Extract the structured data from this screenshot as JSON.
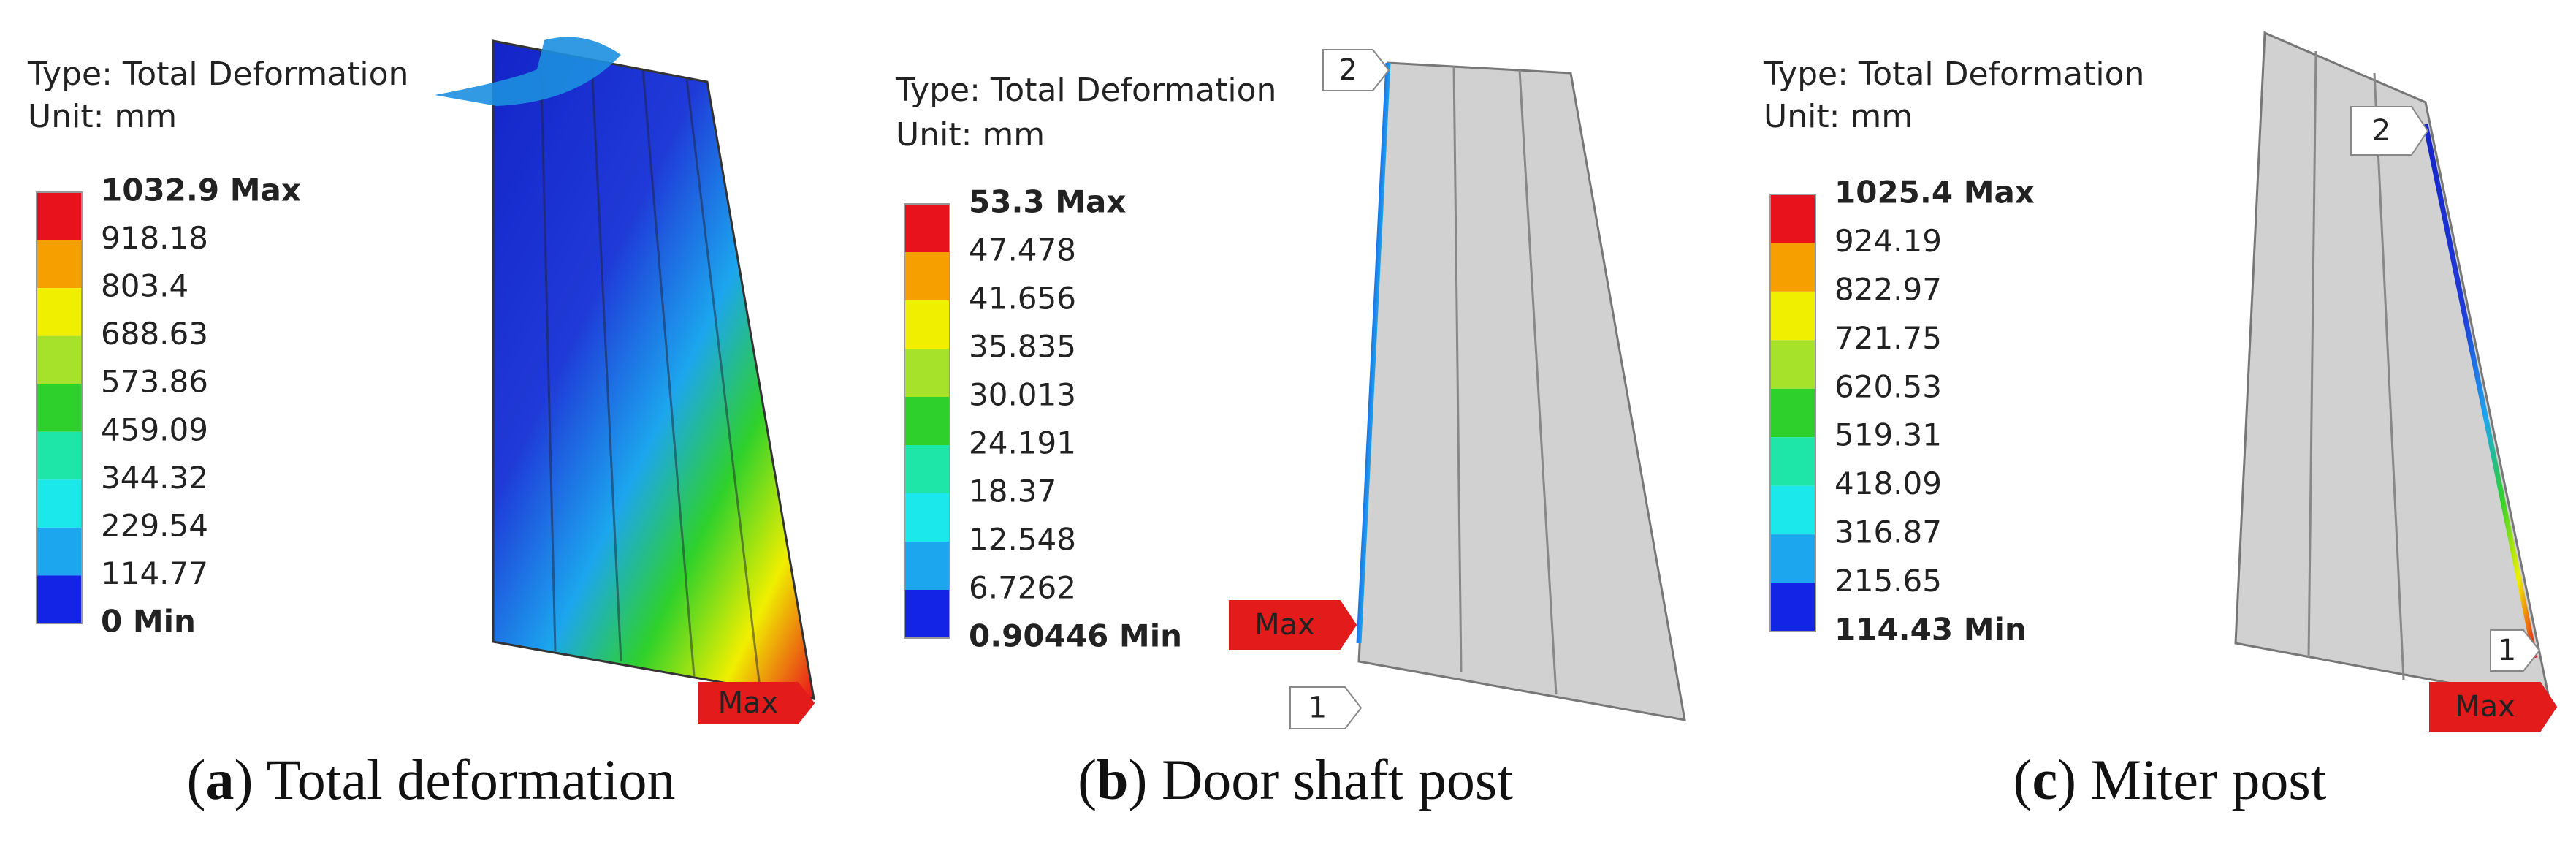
{
  "panels": [
    {
      "type_label": "Type: Total Deformation",
      "unit_label": "Unit: mm",
      "legend_labels": [
        "1032.9 Max",
        "918.18",
        "803.4",
        "688.63",
        "573.86",
        "459.09",
        "344.32",
        "229.54",
        "114.77",
        "0 Min"
      ],
      "tags": [
        "Max"
      ],
      "caption": {
        "open": "(",
        "letter": "a",
        "rest": ") Total deformation"
      }
    },
    {
      "type_label": "Type: Total Deformation",
      "unit_label": "Unit: mm",
      "legend_labels": [
        "53.3 Max",
        "47.478",
        "41.656",
        "35.835",
        "30.013",
        "24.191",
        "18.37",
        "12.548",
        "6.7262",
        "0.90446 Min"
      ],
      "tags": [
        "2",
        "Max",
        "1"
      ],
      "caption": {
        "open": "(",
        "letter": "b",
        "rest": ") Door shaft post"
      }
    },
    {
      "type_label": "Type: Total Deformation",
      "unit_label": "Unit: mm",
      "legend_labels": [
        "1025.4 Max",
        "924.19",
        "822.97",
        "721.75",
        "620.53",
        "519.31",
        "418.09",
        "316.87",
        "215.65",
        "114.43 Min"
      ],
      "tags": [
        "2",
        "1",
        "Max"
      ],
      "caption": {
        "open": "(",
        "letter": "c",
        "rest": ") Miter post"
      }
    }
  ],
  "legend_colors": [
    "#e8121c",
    "#f5a000",
    "#f0ef00",
    "#a6e22a",
    "#2ed12b",
    "#1ee6a8",
    "#1be8ea",
    "#1ca6ee",
    "#1424e6"
  ]
}
